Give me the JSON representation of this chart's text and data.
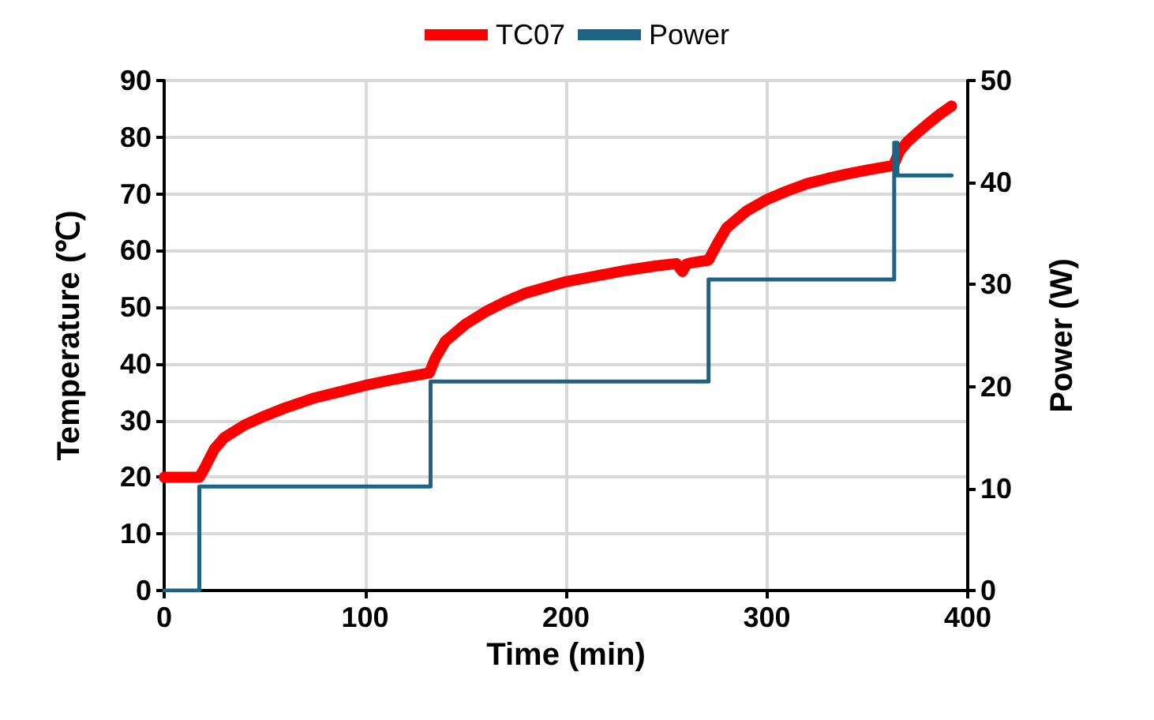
{
  "chart_data": {
    "type": "line",
    "xlabel": "Time (min)",
    "ylabel": "Temperature (℃)",
    "y2label": "Power (W)",
    "xlim": [
      0,
      400
    ],
    "xticks": [
      0,
      100,
      200,
      300,
      400
    ],
    "ylim": [
      0,
      90
    ],
    "yticks": [
      0,
      10,
      20,
      30,
      40,
      50,
      60,
      70,
      80,
      90
    ],
    "y2lim": [
      0,
      50
    ],
    "y2ticks": [
      0,
      10,
      20,
      30,
      40,
      50
    ],
    "grid": true,
    "legend": "top",
    "marker": "none",
    "line_style": "solid",
    "series": [
      {
        "name": "TC07",
        "color": "#ff0000",
        "x": [
          0,
          10,
          17.5,
          20,
          25,
          30,
          40,
          50,
          60,
          75,
          90,
          100,
          115,
          132,
          135,
          140,
          150,
          160,
          170,
          180,
          200,
          215,
          230,
          245,
          255,
          258,
          260,
          262,
          271,
          275,
          280,
          290,
          300,
          310,
          320,
          330,
          340,
          350,
          363,
          366,
          370,
          375,
          380,
          386,
          392
        ],
        "values": [
          20,
          20,
          20,
          21.5,
          25,
          27,
          29.2,
          30.8,
          32.2,
          34,
          35.3,
          36.2,
          37.3,
          38.4,
          41,
          44,
          47,
          49.2,
          51,
          52.5,
          54.5,
          55.5,
          56.5,
          57.3,
          57.7,
          56.3,
          57.6,
          57.8,
          58.3,
          61,
          64,
          67,
          69,
          70.5,
          71.8,
          72.7,
          73.5,
          74.2,
          75,
          77.5,
          79.2,
          80.8,
          82.3,
          84,
          85.5
        ]
      },
      {
        "name": "Power",
        "type": "step",
        "axis": "y2",
        "color": "#1f6384",
        "x": [
          0,
          17.5,
          132.6,
          271,
          363.4,
          365,
          392
        ],
        "values": [
          0,
          10.2,
          20.5,
          30.5,
          43.9,
          40.7,
          40.7
        ]
      }
    ]
  }
}
